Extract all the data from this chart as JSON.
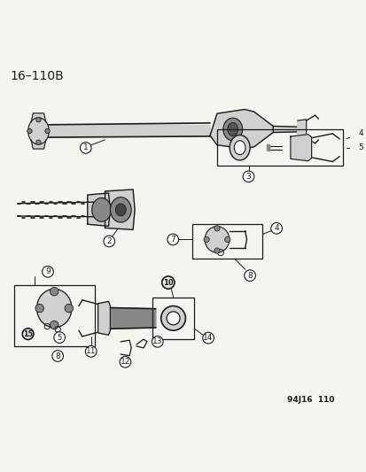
{
  "title": "16–110B",
  "footer": "94J16  110",
  "bg_color": "#f5f5f0",
  "line_color": "#1a1a1a",
  "gray_fill": "#b0b0b0",
  "gray_light": "#d0d0d0",
  "gray_dark": "#888888",
  "fig_width": 4.14,
  "fig_height": 5.33,
  "dpi": 100,
  "parts": {
    "label_r": 6.5,
    "label_fontsize": 6.0,
    "bold_parts": [
      10,
      15
    ]
  }
}
